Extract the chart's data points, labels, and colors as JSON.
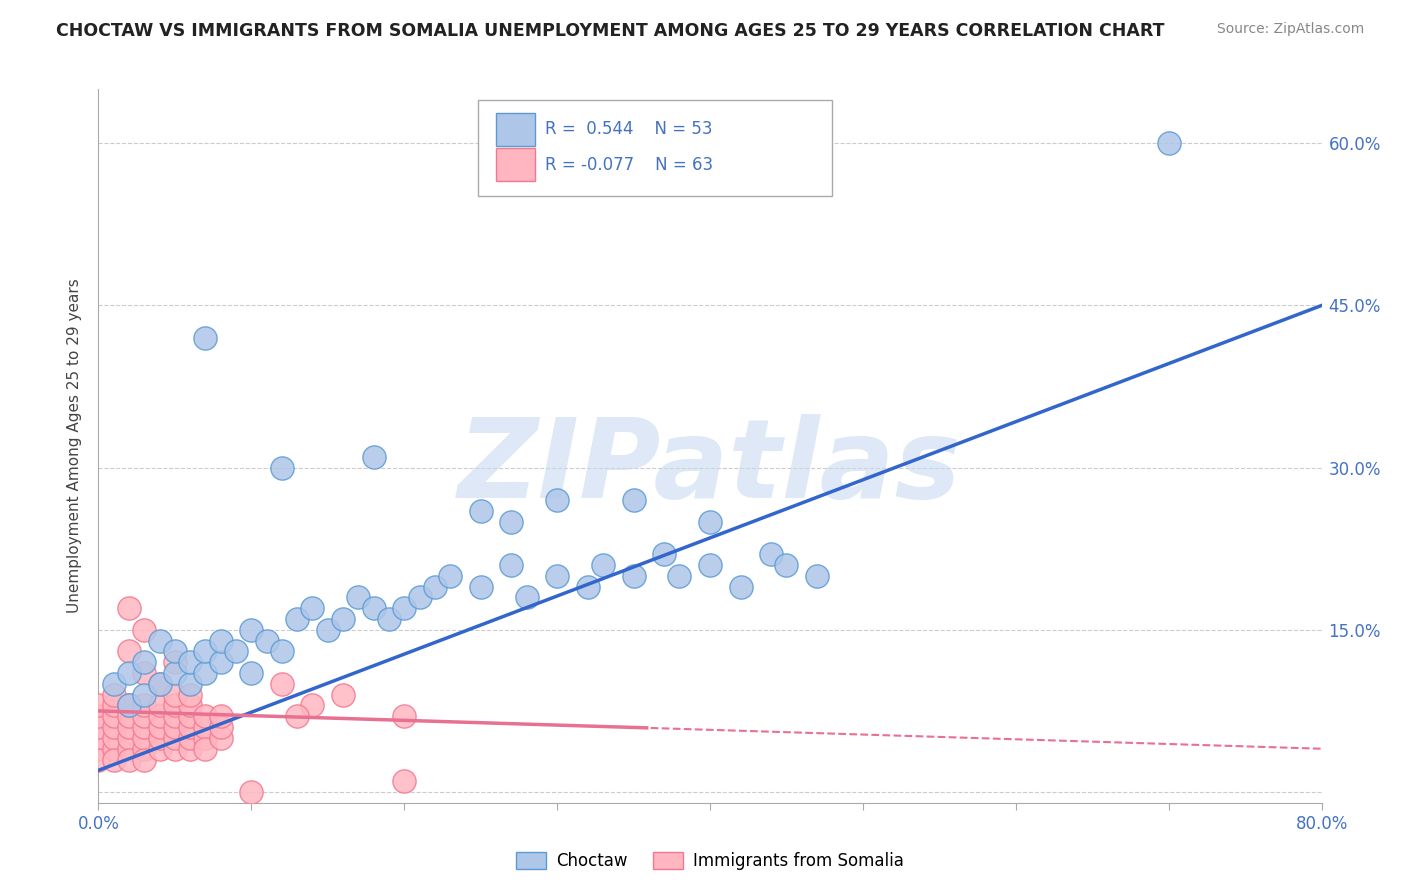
{
  "title": "CHOCTAW VS IMMIGRANTS FROM SOMALIA UNEMPLOYMENT AMONG AGES 25 TO 29 YEARS CORRELATION CHART",
  "source": "Source: ZipAtlas.com",
  "ylabel": "Unemployment Among Ages 25 to 29 years",
  "xlim": [
    0.0,
    0.8
  ],
  "ylim": [
    -0.01,
    0.65
  ],
  "xticks": [
    0.0,
    0.8
  ],
  "xtick_labels": [
    "0.0%",
    "80.0%"
  ],
  "ytick_positions": [
    0.0,
    0.15,
    0.3,
    0.45,
    0.6
  ],
  "ytick_labels": [
    "",
    "15.0%",
    "30.0%",
    "45.0%",
    "60.0%"
  ],
  "grid_color": "#cccccc",
  "background_color": "#ffffff",
  "choctaw_color": "#aec6e8",
  "choctaw_edge_color": "#5b9bd5",
  "somalia_color": "#ffb6c1",
  "somalia_edge_color": "#f4778f",
  "choctaw_R": 0.544,
  "choctaw_N": 53,
  "somalia_R": -0.077,
  "somalia_N": 63,
  "choctaw_line_color": "#3366cc",
  "somalia_line_color": "#e87090",
  "watermark": "ZIPatlas",
  "watermark_color": "#c8daf0",
  "title_color": "#222222",
  "source_color": "#888888",
  "tick_label_color": "#4472c4",
  "ylabel_color": "#444444"
}
